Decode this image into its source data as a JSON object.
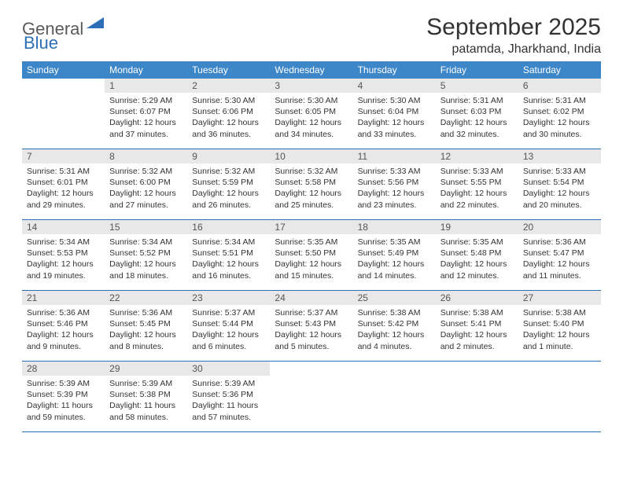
{
  "brand": {
    "part1": "General",
    "part2": "Blue"
  },
  "title": "September 2025",
  "location": "patamda, Jharkhand, India",
  "colors": {
    "header_bg": "#3d87c9",
    "accent": "#2d6fb7",
    "daynum_bg": "#e8e8e8",
    "text": "#333333"
  },
  "day_names": [
    "Sunday",
    "Monday",
    "Tuesday",
    "Wednesday",
    "Thursday",
    "Friday",
    "Saturday"
  ],
  "weeks": [
    [
      null,
      {
        "n": "1",
        "sr": "5:29 AM",
        "ss": "6:07 PM",
        "dl": "12 hours and 37 minutes."
      },
      {
        "n": "2",
        "sr": "5:30 AM",
        "ss": "6:06 PM",
        "dl": "12 hours and 36 minutes."
      },
      {
        "n": "3",
        "sr": "5:30 AM",
        "ss": "6:05 PM",
        "dl": "12 hours and 34 minutes."
      },
      {
        "n": "4",
        "sr": "5:30 AM",
        "ss": "6:04 PM",
        "dl": "12 hours and 33 minutes."
      },
      {
        "n": "5",
        "sr": "5:31 AM",
        "ss": "6:03 PM",
        "dl": "12 hours and 32 minutes."
      },
      {
        "n": "6",
        "sr": "5:31 AM",
        "ss": "6:02 PM",
        "dl": "12 hours and 30 minutes."
      }
    ],
    [
      {
        "n": "7",
        "sr": "5:31 AM",
        "ss": "6:01 PM",
        "dl": "12 hours and 29 minutes."
      },
      {
        "n": "8",
        "sr": "5:32 AM",
        "ss": "6:00 PM",
        "dl": "12 hours and 27 minutes."
      },
      {
        "n": "9",
        "sr": "5:32 AM",
        "ss": "5:59 PM",
        "dl": "12 hours and 26 minutes."
      },
      {
        "n": "10",
        "sr": "5:32 AM",
        "ss": "5:58 PM",
        "dl": "12 hours and 25 minutes."
      },
      {
        "n": "11",
        "sr": "5:33 AM",
        "ss": "5:56 PM",
        "dl": "12 hours and 23 minutes."
      },
      {
        "n": "12",
        "sr": "5:33 AM",
        "ss": "5:55 PM",
        "dl": "12 hours and 22 minutes."
      },
      {
        "n": "13",
        "sr": "5:33 AM",
        "ss": "5:54 PM",
        "dl": "12 hours and 20 minutes."
      }
    ],
    [
      {
        "n": "14",
        "sr": "5:34 AM",
        "ss": "5:53 PM",
        "dl": "12 hours and 19 minutes."
      },
      {
        "n": "15",
        "sr": "5:34 AM",
        "ss": "5:52 PM",
        "dl": "12 hours and 18 minutes."
      },
      {
        "n": "16",
        "sr": "5:34 AM",
        "ss": "5:51 PM",
        "dl": "12 hours and 16 minutes."
      },
      {
        "n": "17",
        "sr": "5:35 AM",
        "ss": "5:50 PM",
        "dl": "12 hours and 15 minutes."
      },
      {
        "n": "18",
        "sr": "5:35 AM",
        "ss": "5:49 PM",
        "dl": "12 hours and 14 minutes."
      },
      {
        "n": "19",
        "sr": "5:35 AM",
        "ss": "5:48 PM",
        "dl": "12 hours and 12 minutes."
      },
      {
        "n": "20",
        "sr": "5:36 AM",
        "ss": "5:47 PM",
        "dl": "12 hours and 11 minutes."
      }
    ],
    [
      {
        "n": "21",
        "sr": "5:36 AM",
        "ss": "5:46 PM",
        "dl": "12 hours and 9 minutes."
      },
      {
        "n": "22",
        "sr": "5:36 AM",
        "ss": "5:45 PM",
        "dl": "12 hours and 8 minutes."
      },
      {
        "n": "23",
        "sr": "5:37 AM",
        "ss": "5:44 PM",
        "dl": "12 hours and 6 minutes."
      },
      {
        "n": "24",
        "sr": "5:37 AM",
        "ss": "5:43 PM",
        "dl": "12 hours and 5 minutes."
      },
      {
        "n": "25",
        "sr": "5:38 AM",
        "ss": "5:42 PM",
        "dl": "12 hours and 4 minutes."
      },
      {
        "n": "26",
        "sr": "5:38 AM",
        "ss": "5:41 PM",
        "dl": "12 hours and 2 minutes."
      },
      {
        "n": "27",
        "sr": "5:38 AM",
        "ss": "5:40 PM",
        "dl": "12 hours and 1 minute."
      }
    ],
    [
      {
        "n": "28",
        "sr": "5:39 AM",
        "ss": "5:39 PM",
        "dl": "11 hours and 59 minutes."
      },
      {
        "n": "29",
        "sr": "5:39 AM",
        "ss": "5:38 PM",
        "dl": "11 hours and 58 minutes."
      },
      {
        "n": "30",
        "sr": "5:39 AM",
        "ss": "5:36 PM",
        "dl": "11 hours and 57 minutes."
      },
      null,
      null,
      null,
      null
    ]
  ],
  "labels": {
    "sunrise": "Sunrise:",
    "sunset": "Sunset:",
    "daylight": "Daylight:"
  }
}
